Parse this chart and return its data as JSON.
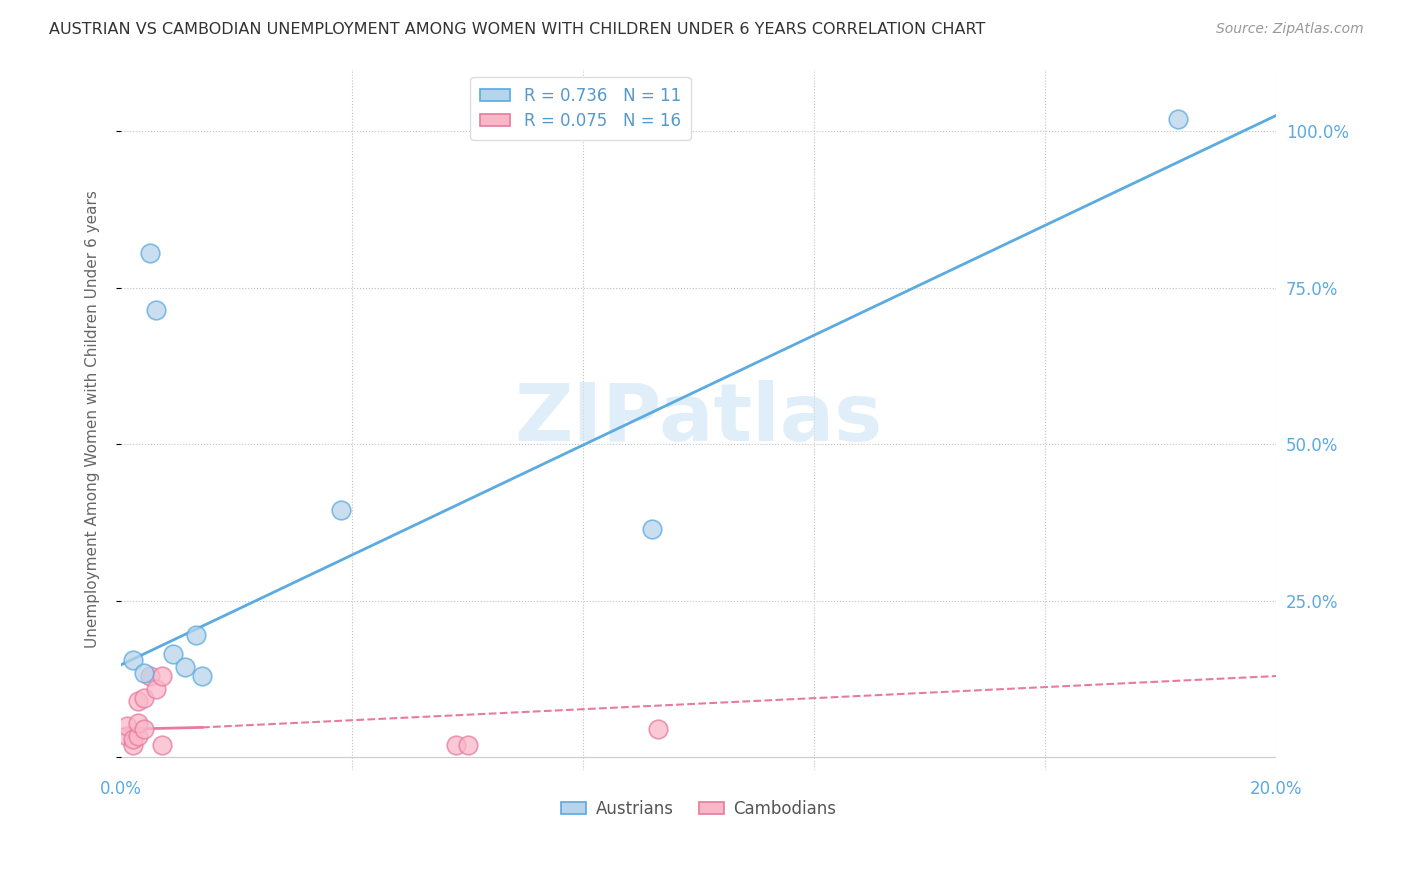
{
  "title": "AUSTRIAN VS CAMBODIAN UNEMPLOYMENT AMONG WOMEN WITH CHILDREN UNDER 6 YEARS CORRELATION CHART",
  "source": "Source: ZipAtlas.com",
  "ylabel": "Unemployment Among Women with Children Under 6 years",
  "xlabel": "",
  "xlim": [
    0.0,
    0.2
  ],
  "ylim": [
    -0.02,
    1.1
  ],
  "plot_ylim": [
    0.0,
    1.05
  ],
  "xticks": [
    0.0,
    0.04,
    0.08,
    0.12,
    0.16,
    0.2
  ],
  "yticks": [
    0.0,
    0.25,
    0.5,
    0.75,
    1.0
  ],
  "yticklabels": [
    "",
    "25.0%",
    "50.0%",
    "75.0%",
    "100.0%"
  ],
  "austrians_R": "0.736",
  "austrians_N": "11",
  "cambodians_R": "0.075",
  "cambodians_N": "16",
  "austrians_color": "#b8d4ea",
  "cambodians_color": "#f9b8c8",
  "austrians_line_color": "#5baae0",
  "cambodians_line_color": "#e87aa0",
  "watermark_text": "ZIPatlas",
  "austrians_x": [
    0.002,
    0.004,
    0.005,
    0.006,
    0.009,
    0.011,
    0.013,
    0.014,
    0.038,
    0.092,
    0.183
  ],
  "austrians_y": [
    0.155,
    0.135,
    0.805,
    0.715,
    0.165,
    0.145,
    0.195,
    0.13,
    0.395,
    0.365,
    1.02
  ],
  "cambodians_x": [
    0.001,
    0.001,
    0.002,
    0.002,
    0.003,
    0.003,
    0.003,
    0.004,
    0.004,
    0.005,
    0.006,
    0.007,
    0.007,
    0.058,
    0.06,
    0.093
  ],
  "cambodians_y": [
    0.035,
    0.05,
    0.02,
    0.03,
    0.035,
    0.055,
    0.09,
    0.045,
    0.095,
    0.13,
    0.11,
    0.13,
    0.02,
    0.02,
    0.02,
    0.045
  ],
  "aus_line_x0": 0.0,
  "aus_line_y0": 0.148,
  "aus_line_x1": 0.2,
  "aus_line_y1": 1.025,
  "cam_line_solid_x0": 0.0,
  "cam_line_solid_y0": 0.045,
  "cam_line_solid_x1": 0.014,
  "cam_line_solid_y1": 0.048,
  "cam_line_dash_x0": 0.014,
  "cam_line_dash_y0": 0.048,
  "cam_line_dash_x1": 0.2,
  "cam_line_dash_y1": 0.13,
  "background_color": "#ffffff",
  "grid_color": "#bbbbbb",
  "title_color": "#333333",
  "axis_color": "#5baae0",
  "legend_R_color": "#5599cc",
  "legend_N_color": "#333333"
}
